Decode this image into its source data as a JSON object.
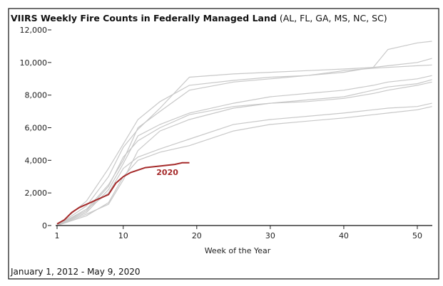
{
  "chart_data": {
    "type": "line",
    "title": "VIIRS Weekly Fire Counts in Federally Managed Land",
    "title_suffix": "(AL, FL, GA, MS, NC, SC)",
    "xlabel": "Week of the Year",
    "ylabel": "",
    "xlim": [
      1,
      52
    ],
    "ylim": [
      0,
      12000
    ],
    "x_ticks": [
      1,
      10,
      20,
      30,
      40,
      50
    ],
    "y_ticks": [
      0,
      2000,
      4000,
      6000,
      8000,
      10000,
      12000
    ],
    "y_tick_labels": [
      "0",
      "2,000",
      "4,000",
      "6,000",
      "8,000",
      "10,000",
      "12,000"
    ],
    "grid": false,
    "footnote": "January 1, 2012 - May 9, 2020",
    "colors": {
      "history": "#c8c8c8",
      "highlight": "#a52a2a"
    },
    "history_x": [
      1,
      5,
      8,
      10,
      12,
      15,
      19,
      25,
      30,
      35,
      40,
      44,
      46,
      50,
      52
    ],
    "history_series": [
      [
        0,
        1200,
        3000,
        4800,
        5900,
        7200,
        9100,
        9300,
        9400,
        9500,
        9600,
        9700,
        10800,
        11200,
        11300
      ],
      [
        0,
        1500,
        3500,
        5000,
        6500,
        7600,
        8600,
        8900,
        9100,
        9200,
        9400,
        9700,
        9800,
        10000,
        10250
      ],
      [
        0,
        1000,
        2500,
        4000,
        6000,
        7000,
        8300,
        8800,
        9000,
        9200,
        9500,
        9650,
        9700,
        9800,
        9850
      ],
      [
        0,
        800,
        2200,
        3800,
        5500,
        6200,
        6900,
        7500,
        7900,
        8100,
        8300,
        8600,
        8800,
        9000,
        9200
      ],
      [
        0,
        900,
        2400,
        4200,
        5200,
        6000,
        6800,
        7300,
        7500,
        7700,
        7900,
        8300,
        8500,
        8700,
        8950
      ],
      [
        0,
        700,
        1300,
        2800,
        4600,
        5800,
        6500,
        7200,
        7500,
        7600,
        7800,
        8100,
        8300,
        8600,
        8800
      ],
      [
        0,
        1000,
        2000,
        3500,
        4200,
        4700,
        5300,
        6200,
        6500,
        6700,
        6900,
        7100,
        7200,
        7300,
        7500
      ],
      [
        0,
        600,
        1400,
        3000,
        4000,
        4500,
        4900,
        5800,
        6200,
        6400,
        6600,
        6800,
        6900,
        7100,
        7300
      ]
    ],
    "highlight": {
      "name": "2020",
      "x": [
        1,
        2,
        3,
        4,
        5,
        6,
        7,
        8,
        9,
        10,
        11,
        12,
        13,
        14,
        15,
        16,
        17,
        18,
        19
      ],
      "values": [
        100,
        350,
        800,
        1100,
        1300,
        1500,
        1700,
        1900,
        2600,
        3000,
        3250,
        3400,
        3550,
        3600,
        3650,
        3700,
        3750,
        3850,
        3850
      ]
    }
  }
}
